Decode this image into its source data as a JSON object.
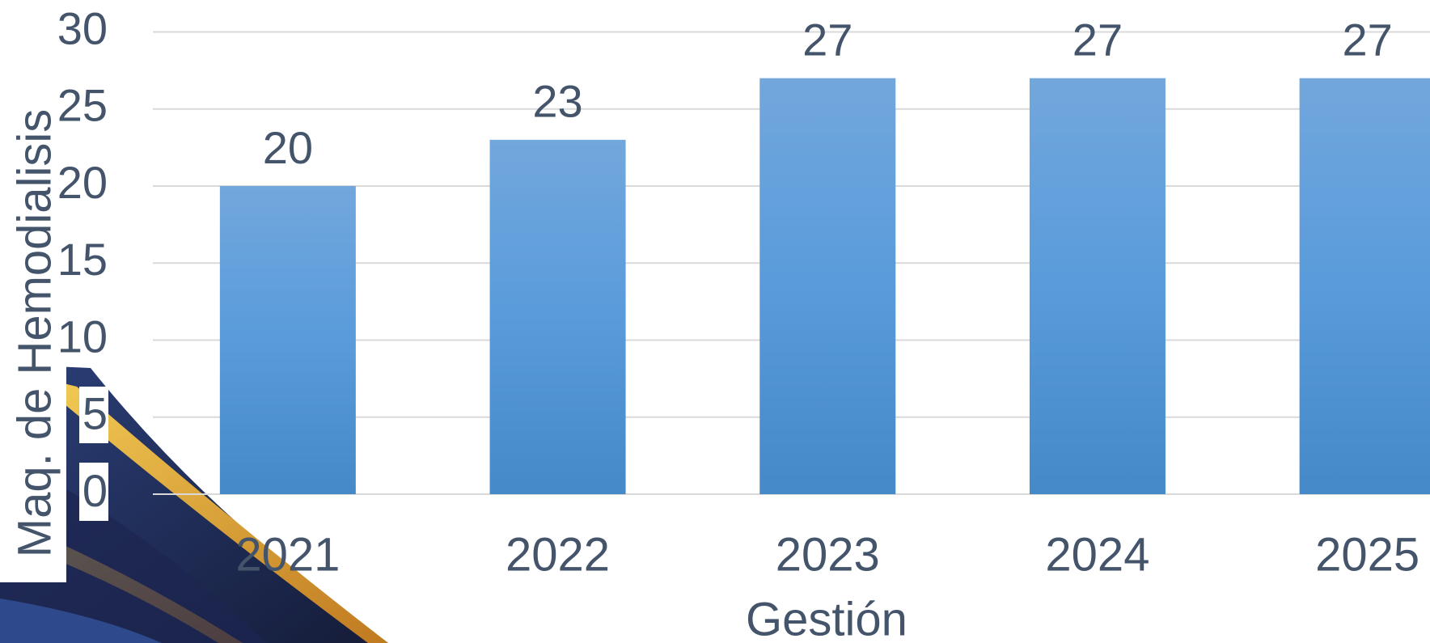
{
  "chart_data": {
    "type": "bar",
    "categories": [
      "2021",
      "2022",
      "2023",
      "2024",
      "2025"
    ],
    "values": [
      20,
      23,
      27,
      27,
      27
    ],
    "color": "#5b9bd5",
    "ylim": [
      0,
      30
    ],
    "yticks": [
      0,
      5,
      10,
      15,
      20,
      25,
      30
    ],
    "grid": true,
    "x_label": "Gestión",
    "y_label": "Maq. de Hemodialisis"
  }
}
